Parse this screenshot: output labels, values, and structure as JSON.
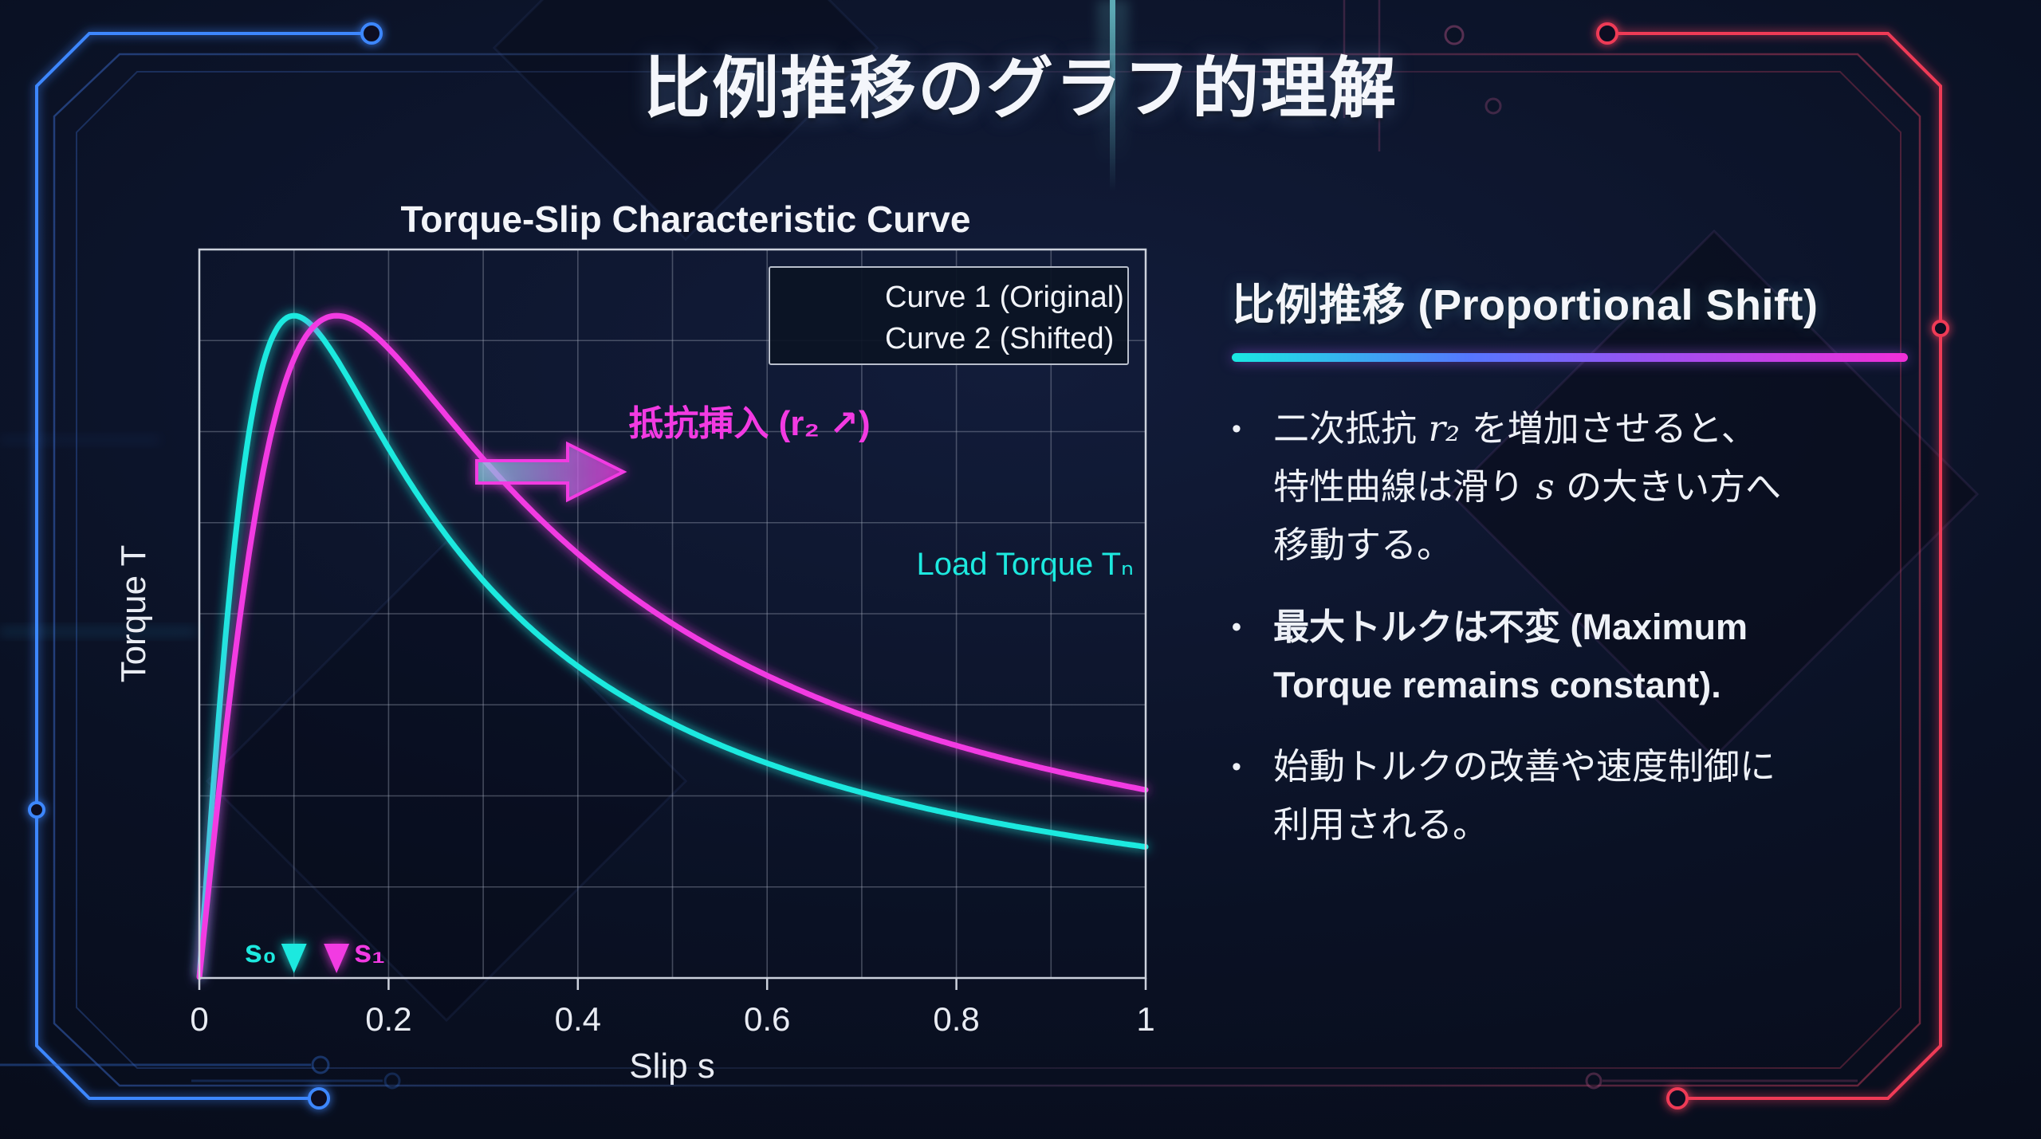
{
  "slide": {
    "title": "比例推移のグラフ的理解"
  },
  "panel": {
    "heading": "比例推移 (Proportional Shift)",
    "underline_gradient": [
      "#1ae8e2",
      "#f02fd8"
    ],
    "bullets": [
      {
        "bold": false,
        "segments": [
          {
            "text": "二次抵抗 "
          },
          {
            "text": "r₂",
            "math": true
          },
          {
            "text": " を増加させると、\n特性曲線は滑り "
          },
          {
            "text": "s",
            "math": true
          },
          {
            "text": " の大きい方へ\n移動する。"
          }
        ]
      },
      {
        "bold": true,
        "segments": [
          {
            "text": "最大トルクは不変 (Maximum\nTorque remains constant)."
          }
        ]
      },
      {
        "bold": false,
        "segments": [
          {
            "text": "始動トルクの改善や速度制御に\n利用される。"
          }
        ]
      }
    ]
  },
  "chart_data": {
    "type": "line",
    "title": "Torque-Slip Characteristic Curve",
    "xlabel": "Slip s",
    "ylabel": "Torque T",
    "xlim": [
      0,
      1
    ],
    "ylim": [
      0,
      1.1
    ],
    "x_ticks": [
      {
        "v": 0,
        "label": "0"
      },
      {
        "v": 0.2,
        "label": "0.2"
      },
      {
        "v": 0.4,
        "label": "0.4"
      },
      {
        "v": 0.6,
        "label": "0.6"
      },
      {
        "v": 0.8,
        "label": "0.8"
      },
      {
        "v": 1,
        "label": "1"
      }
    ],
    "grid": {
      "x_step": 0.1,
      "y_divisions": 8,
      "visible": true
    },
    "legend_position": "upper right",
    "series": [
      {
        "name": "Curve 1 (Original)",
        "color": "#1de9df",
        "model": "kloss",
        "s_max": 0.1,
        "t_max": 1.0,
        "x": [
          0.02,
          0.05,
          0.1,
          0.15,
          0.2,
          0.3,
          0.4,
          0.5,
          0.6,
          0.7,
          0.8,
          0.9,
          1.0
        ],
        "values": [
          0.39,
          0.8,
          1.0,
          0.92,
          0.8,
          0.6,
          0.47,
          0.39,
          0.32,
          0.28,
          0.25,
          0.22,
          0.2
        ]
      },
      {
        "name": "Curve 2 (Shifted)",
        "color": "#f23ae2",
        "model": "kloss",
        "s_max": 0.145,
        "t_max": 1.0,
        "x": [
          0.02,
          0.05,
          0.1,
          0.145,
          0.2,
          0.3,
          0.4,
          0.5,
          0.6,
          0.7,
          0.8,
          0.9,
          1.0
        ],
        "values": [
          0.27,
          0.62,
          0.94,
          1.0,
          0.95,
          0.78,
          0.64,
          0.54,
          0.46,
          0.4,
          0.35,
          0.31,
          0.28
        ]
      }
    ],
    "load_torque": {
      "label": "Load Torque Tₙ",
      "value": 0.58,
      "color": "#1de9df"
    },
    "markers": [
      {
        "label": "s₀",
        "x": 0.1,
        "color": "#1de9df"
      },
      {
        "label": "s₁",
        "x": 0.145,
        "color": "#f23ae2"
      }
    ],
    "annotation": {
      "label": "抵抗挿入 (r₂ ↗)",
      "color": "#f23ae2"
    }
  }
}
